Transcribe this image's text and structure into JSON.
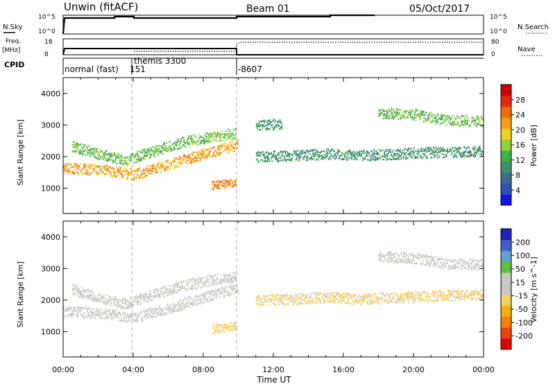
{
  "header": {
    "station": "Unwin (fitACF)",
    "beam": "Beam 01",
    "date": "05/Oct/2017"
  },
  "strip_labels": {
    "nsky": "N.Sky",
    "nsky_ticks": [
      "10^5",
      "10^0"
    ],
    "nsearch": "N.Search",
    "nsearch_ticks": [
      "10^5",
      "10^0"
    ],
    "freq": "Freq.",
    "freq_unit": "[MHz]",
    "freq_ticks": [
      "18",
      "8"
    ],
    "nave": "Nave",
    "nave_ticks": [
      "80",
      "0"
    ],
    "cpid": "CPID"
  },
  "cpid_segments": [
    {
      "label": "normal (fast)",
      "start_hour": 0.0
    },
    {
      "label": "151",
      "start_hour": 4.0
    },
    {
      "label": "themis 3300",
      "start_hour": 4.0
    },
    {
      "label": "-8607",
      "start_hour": 10.0
    }
  ],
  "colors": {
    "power": [
      "#1414e6",
      "#2b4fb8",
      "#3a6e8a",
      "#3f8f6a",
      "#3fae4a",
      "#8fd23a",
      "#f0d020",
      "#f5a017",
      "#f06a10",
      "#e22a0a",
      "#d00000"
    ],
    "velocity": [
      "#e00000",
      "#f04010",
      "#f58010",
      "#f5b010",
      "#f5d060",
      "#c8c8c0",
      "#c8c8c0",
      "#60c040",
      "#60a0d0",
      "#4060c8",
      "#2020b8"
    ]
  },
  "chart_data": [
    {
      "type": "heatmap",
      "name": "power",
      "ylabel": "Slant Range [km]",
      "yticks": [
        "1000",
        "2000",
        "3000",
        "4000"
      ],
      "ylim": [
        200,
        4500
      ],
      "xlim": [
        0,
        24
      ],
      "colorbar_label": "Power [dB]",
      "colorbar_ticks": [
        "4",
        "8",
        "12",
        "16",
        "20",
        "24",
        "28"
      ],
      "colorbar_range": [
        0,
        32
      ],
      "features": [
        {
          "x": [
            0.0,
            1.5,
            3.0,
            4.0,
            6.0,
            8.0,
            10.0
          ],
          "y": [
            1650,
            1620,
            1550,
            1450,
            1750,
            2100,
            2400
          ],
          "v": 22
        },
        {
          "x": [
            0.5,
            2.0,
            3.5,
            5.5,
            7.0,
            8.5,
            9.9
          ],
          "y": [
            2350,
            2100,
            1900,
            2250,
            2500,
            2650,
            2750
          ],
          "v": 14
        },
        {
          "x": [
            8.5,
            9.9
          ],
          "y": [
            1100,
            1200
          ],
          "v": 24
        },
        {
          "x": [
            11.0,
            12.5
          ],
          "y": [
            3000,
            3050
          ],
          "v": 10
        },
        {
          "x": [
            11.0,
            13.0,
            15.0,
            17.0,
            19.0,
            21.0,
            24.0
          ],
          "y": [
            2000,
            2050,
            2100,
            2050,
            2100,
            2150,
            2200
          ],
          "v": 10
        },
        {
          "x": [
            18.0,
            20.0,
            22.0,
            24.0
          ],
          "y": [
            3400,
            3350,
            3150,
            3150
          ],
          "v": 14
        }
      ]
    },
    {
      "type": "heatmap",
      "name": "velocity",
      "ylabel": "Slant Range [km]",
      "yticks": [
        "1000",
        "2000",
        "3000",
        "4000"
      ],
      "ylim": [
        200,
        4500
      ],
      "xlim": [
        0,
        24
      ],
      "xticks": [
        "00:00",
        "04:00",
        "08:00",
        "12:00",
        "16:00",
        "20:00",
        "00:00"
      ],
      "xlabel": "Time UT",
      "colorbar_label": "Velocity [m s^-1]",
      "colorbar_ticks": [
        "-200",
        "-100",
        "-50",
        "-15",
        "15",
        "50",
        "100",
        "200"
      ],
      "features": [
        {
          "x": [
            0.0,
            1.5,
            3.0,
            4.0,
            6.0,
            8.0,
            10.0
          ],
          "y": [
            1650,
            1620,
            1550,
            1450,
            1750,
            2100,
            2400
          ],
          "v": 0
        },
        {
          "x": [
            0.5,
            2.0,
            3.5,
            5.5,
            7.0,
            8.5,
            9.9
          ],
          "y": [
            2350,
            2100,
            1900,
            2250,
            2500,
            2650,
            2750
          ],
          "v": 0
        },
        {
          "x": [
            8.5,
            9.9
          ],
          "y": [
            1100,
            1200
          ],
          "v": -40
        },
        {
          "x": [
            11.0,
            13.0,
            15.0,
            17.0,
            19.0,
            21.0,
            24.0
          ],
          "y": [
            2000,
            2050,
            2100,
            2050,
            2100,
            2150,
            2200
          ],
          "v": -30
        },
        {
          "x": [
            18.0,
            20.0,
            22.0,
            24.0
          ],
          "y": [
            3400,
            3350,
            3150,
            3150
          ],
          "v": 0
        }
      ]
    }
  ]
}
